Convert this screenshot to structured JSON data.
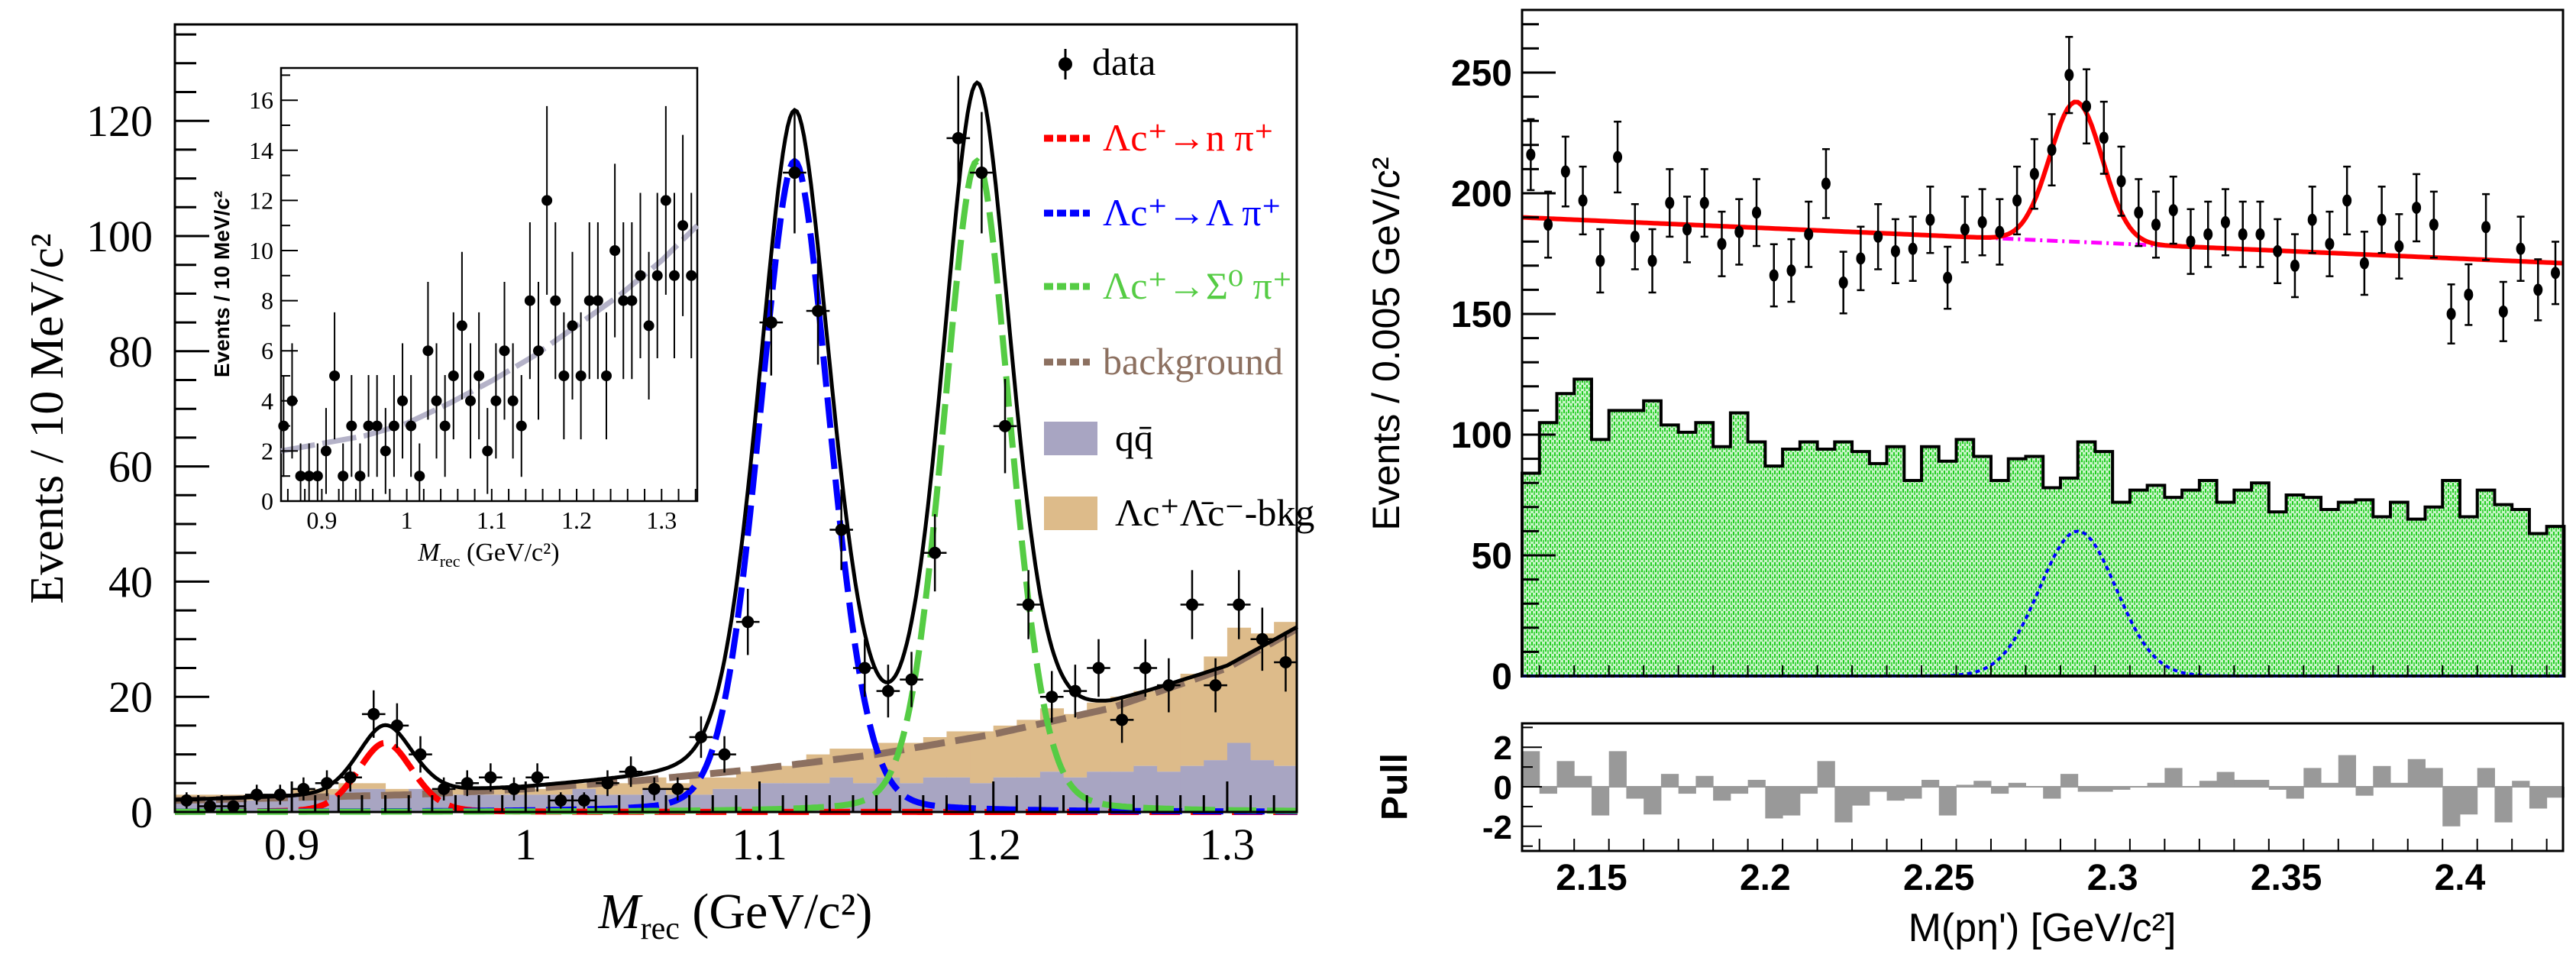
{
  "chart_data": [
    {
      "type": "scatter",
      "id": "left-main",
      "xlabel": {
        "main": "M",
        "sub": "rec",
        "rest": " (GeV/c²)"
      },
      "ylabel": "Events / 10 MeV/c²",
      "xlim": [
        0.85,
        1.33
      ],
      "ylim": [
        0,
        136
      ],
      "xticks": [
        "0.9",
        "1",
        "1.1",
        "1.2",
        "1.3"
      ],
      "yticks": [
        "0",
        "20",
        "40",
        "60",
        "80",
        "100",
        "120"
      ],
      "data": {
        "x": [
          0.855,
          0.865,
          0.875,
          0.885,
          0.895,
          0.905,
          0.915,
          0.925,
          0.935,
          0.945,
          0.955,
          0.965,
          0.975,
          0.985,
          0.995,
          1.005,
          1.015,
          1.025,
          1.035,
          1.045,
          1.055,
          1.065,
          1.075,
          1.085,
          1.095,
          1.105,
          1.115,
          1.125,
          1.135,
          1.145,
          1.155,
          1.165,
          1.175,
          1.185,
          1.195,
          1.205,
          1.215,
          1.225,
          1.235,
          1.245,
          1.255,
          1.265,
          1.275,
          1.285,
          1.295,
          1.305,
          1.315,
          1.325
        ],
        "y": [
          2,
          1,
          1,
          3,
          3,
          4,
          5,
          6,
          17,
          15,
          10,
          4,
          5,
          6,
          4,
          6,
          2,
          2,
          5,
          7,
          4,
          4,
          13,
          10,
          33,
          85,
          111,
          87,
          49,
          25,
          21,
          23,
          45,
          117,
          111,
          67,
          36,
          20,
          21,
          25,
          16,
          25,
          22,
          36,
          22,
          36,
          30,
          26
        ]
      },
      "components": [
        {
          "name": "Λc⁺→n π⁺",
          "color": "#ff0000",
          "mean": 0.94,
          "amplitude": 12,
          "sigma": 0.012,
          "gamma": 0.012
        },
        {
          "name": "Λc⁺→Λ π⁺",
          "color": "#0000ff",
          "mean": 1.115,
          "amplitude": 113,
          "sigma": 0.016,
          "gamma": 0.013
        },
        {
          "name": "Λc⁺→Σ⁰ π⁺",
          "color": "#55cc44",
          "mean": 1.193,
          "amplitude": 113,
          "sigma": 0.015,
          "gamma": 0.013
        }
      ],
      "background": {
        "name": "background",
        "color": "#8c7060",
        "points": [
          [
            0.85,
            2
          ],
          [
            0.9,
            2.5
          ],
          [
            0.95,
            3
          ],
          [
            1.0,
            4
          ],
          [
            1.05,
            5.5
          ],
          [
            1.1,
            7.5
          ],
          [
            1.15,
            10
          ],
          [
            1.2,
            13.5
          ],
          [
            1.25,
            18
          ],
          [
            1.3,
            25
          ],
          [
            1.335,
            33
          ]
        ]
      },
      "histograms": {
        "bin_start": 0.85,
        "bin_width": 0.01,
        "qqbar": {
          "name": "qq̄",
          "color": "#a8a5c2",
          "values": [
            2,
            2,
            2,
            2,
            3,
            3,
            3,
            4,
            4,
            3,
            4,
            3,
            3,
            3,
            3,
            3,
            3,
            4,
            3,
            3,
            4,
            3,
            3,
            4,
            4,
            5,
            5,
            5,
            6,
            5,
            6,
            5,
            6,
            6,
            5,
            6,
            6,
            7,
            6,
            7,
            7,
            8,
            7,
            8,
            9,
            12,
            9,
            8
          ]
        },
        "lclc": {
          "name": "Λc⁺Λ̄c⁻-bkg",
          "color": "#ddbb8a",
          "values": [
            1,
            1,
            1,
            1,
            0,
            1,
            1,
            1,
            1,
            1,
            0,
            1,
            1,
            1,
            1,
            1,
            1,
            1,
            2,
            2,
            2,
            2,
            3,
            2,
            3,
            3,
            3,
            5,
            5,
            6,
            6,
            7,
            7,
            8,
            9,
            9,
            10,
            11,
            11,
            12,
            13,
            13,
            15,
            16,
            18,
            20,
            22,
            25
          ]
        }
      },
      "legend": {
        "position": "top-right",
        "data_label": "data",
        "red_label": "Λc⁺→n π⁺",
        "blue_label": "Λc⁺→Λ π⁺",
        "green_label": "Λc⁺→Σ⁰ π⁺",
        "bkg_label": "background",
        "qq_label": "qq̄",
        "lclc_label": "Λc⁺Λ̄c⁻-bkg"
      }
    },
    {
      "type": "scatter",
      "id": "left-inset",
      "xlabel": {
        "main": "M",
        "sub": "rec",
        "rest": " (GeV/c²)"
      },
      "ylabel": "Events / 10 MeV/c²",
      "xlim": [
        0.852,
        1.342
      ],
      "ylim": [
        0,
        17.3
      ],
      "xticks": [
        "0.9",
        "1",
        "1.1",
        "1.2",
        "1.3"
      ],
      "yticks": [
        "0",
        "2",
        "4",
        "6",
        "8",
        "10",
        "12",
        "14",
        "16"
      ],
      "data": {
        "x": [
          0.855,
          0.865,
          0.875,
          0.885,
          0.895,
          0.905,
          0.915,
          0.925,
          0.935,
          0.945,
          0.955,
          0.965,
          0.975,
          0.985,
          0.995,
          1.005,
          1.015,
          1.025,
          1.035,
          1.045,
          1.055,
          1.065,
          1.075,
          1.085,
          1.095,
          1.105,
          1.115,
          1.125,
          1.135,
          1.145,
          1.155,
          1.165,
          1.175,
          1.185,
          1.195,
          1.205,
          1.215,
          1.225,
          1.235,
          1.245,
          1.255,
          1.265,
          1.275,
          1.285,
          1.295,
          1.305,
          1.315,
          1.325,
          1.335
        ],
        "y": [
          3,
          4,
          1,
          1,
          1,
          2,
          5,
          1,
          3,
          1,
          3,
          3,
          2,
          3,
          4,
          3,
          1,
          6,
          4,
          3,
          5,
          7,
          4,
          5,
          2,
          4,
          6,
          4,
          3,
          8,
          6,
          12,
          8,
          5,
          7,
          5,
          8,
          8,
          5,
          10,
          8,
          8,
          9,
          7,
          9,
          12,
          9,
          11,
          9
        ]
      },
      "fit": {
        "color": "#b4b2c8",
        "points": [
          [
            0.852,
            2
          ],
          [
            0.9,
            2.3
          ],
          [
            0.95,
            2.6
          ],
          [
            1.0,
            3.1
          ],
          [
            1.05,
            3.9
          ],
          [
            1.1,
            4.8
          ],
          [
            1.15,
            5.8
          ],
          [
            1.2,
            7
          ],
          [
            1.25,
            8.2
          ],
          [
            1.3,
            9.6
          ],
          [
            1.342,
            11
          ]
        ]
      }
    },
    {
      "type": "scatter",
      "id": "right-main",
      "xlabel": "M(pη') [GeV/c²]",
      "ylabel": "Events / 0.005 GeV/c²",
      "xlim": [
        2.13,
        2.43
      ],
      "ylim": [
        0,
        276
      ],
      "xticks": [
        "2.15",
        "2.2",
        "2.25",
        "2.3",
        "2.35",
        "2.4"
      ],
      "yticks": [
        "0",
        "50",
        "100",
        "150",
        "200",
        "250"
      ],
      "bin_start": 2.13,
      "bin_width": 0.005,
      "data": [
        216,
        187,
        209,
        197,
        172,
        215,
        182,
        172,
        196,
        185,
        196,
        179,
        184,
        192,
        166,
        168,
        183,
        204,
        163,
        173,
        182,
        176,
        177,
        189,
        165,
        185,
        188,
        184,
        197,
        208,
        218,
        249,
        236,
        223,
        205,
        192,
        187,
        193,
        180,
        183,
        188,
        183,
        183,
        176,
        170,
        189,
        179,
        197,
        171,
        189,
        178,
        194,
        187,
        150,
        158,
        186,
        151,
        177,
        160,
        167
      ],
      "fit": {
        "color": "#ff0000",
        "bkg_color": "#ff00ff",
        "bkg_start": 190,
        "bkg_end": 171,
        "peak_mean": 2.2895,
        "peak_amplitude": 58,
        "peak_sigma": 0.0075
      },
      "mc_histogram": {
        "color": "#22dd22",
        "values": [
          84,
          105,
          117,
          123,
          98,
          110,
          110,
          114,
          104,
          101,
          105,
          95,
          109,
          97,
          87,
          94,
          97,
          94,
          97,
          93,
          88,
          95,
          81,
          95,
          89,
          98,
          91,
          81,
          90,
          91,
          78,
          82,
          97,
          93,
          72,
          77,
          79,
          74,
          77,
          81,
          72,
          77,
          80,
          68,
          75,
          74,
          69,
          72,
          73,
          66,
          72,
          65,
          70,
          81,
          66,
          77,
          71,
          69,
          59,
          62
        ]
      },
      "mc_signal": {
        "color": "#0000ff",
        "mean": 2.29,
        "amplitude": 60,
        "sigma": 0.011
      }
    },
    {
      "type": "bar",
      "id": "right-pull",
      "ylabel": "Pull",
      "xlim": [
        2.13,
        2.43
      ],
      "ylim": [
        -3.25,
        3.2
      ],
      "yticks": [
        "-2",
        "0",
        "2"
      ],
      "bin_start": 2.13,
      "bin_width": 0.005,
      "color": "#999999",
      "values": [
        1.8,
        -0.35,
        1.3,
        0.55,
        -1.45,
        1.8,
        -0.6,
        -1.4,
        0.65,
        -0.35,
        0.55,
        -0.7,
        -0.35,
        0.35,
        -1.6,
        -1.45,
        -0.35,
        1.3,
        -1.8,
        -0.95,
        -0.25,
        -0.7,
        -0.6,
        0.35,
        -1.45,
        0.1,
        0.3,
        -0.35,
        0.2,
        0,
        -0.6,
        0.65,
        -0.25,
        -0.25,
        -0.15,
        0,
        0.2,
        0.95,
        0,
        0.3,
        0.75,
        0.35,
        0.35,
        -0.15,
        -0.6,
        0.95,
        0.2,
        1.6,
        -0.45,
        1.05,
        0.2,
        1.4,
        0.95,
        -2.0,
        -1.4,
        0.95,
        -1.8,
        0.3,
        -1.1,
        -0.55
      ]
    }
  ]
}
